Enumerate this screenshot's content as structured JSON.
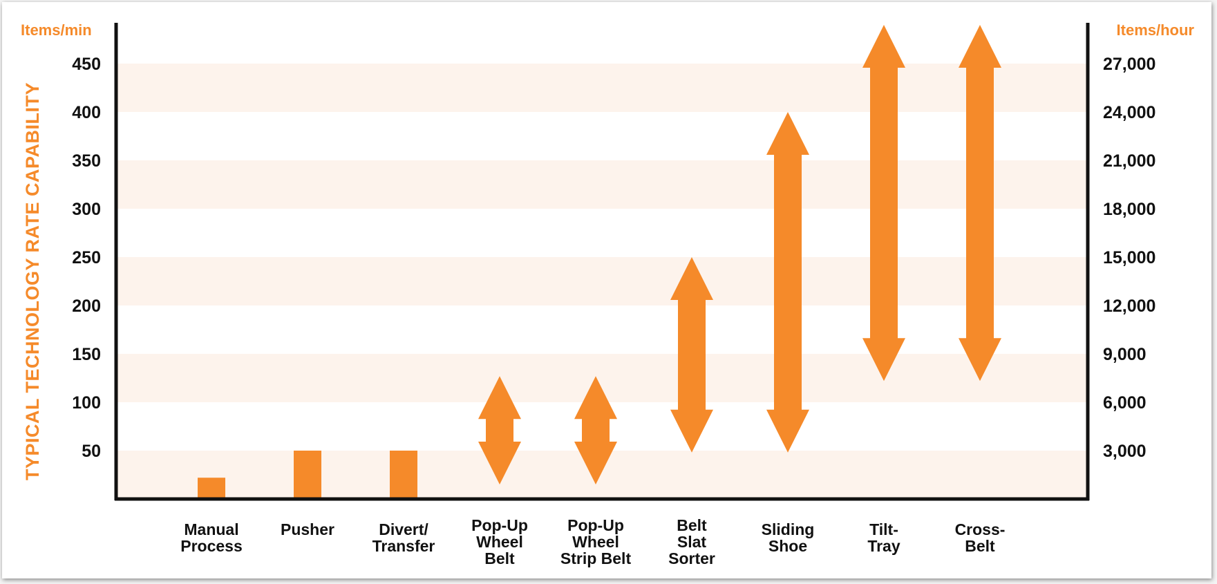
{
  "chart_data": {
    "type": "range-bar",
    "ylabel": "TYPICAL TECHNOLOGY RATE CAPABILITY",
    "left_axis_unit": "Items/min",
    "right_axis_unit": "Items/hour",
    "left_ticks": [
      "50",
      "100",
      "150",
      "200",
      "250",
      "300",
      "350",
      "400",
      "450"
    ],
    "right_ticks": [
      "3,000",
      "6,000",
      "9,000",
      "12,000",
      "15,000",
      "18,000",
      "21,000",
      "24,000",
      "27,000"
    ],
    "ylim": [
      0,
      450
    ],
    "grid": "alternating horizontal bands",
    "categories": [
      {
        "label": [
          "Manual",
          "Process"
        ],
        "kind": "bar",
        "max": 22
      },
      {
        "label": [
          "Pusher"
        ],
        "kind": "bar",
        "max": 50
      },
      {
        "label": [
          "Divert/",
          "Transfer"
        ],
        "kind": "bar",
        "max": 50
      },
      {
        "label": [
          "Pop-Up",
          "Wheel",
          "Belt"
        ],
        "kind": "range",
        "min": 15,
        "max": 127
      },
      {
        "label": [
          "Pop-Up",
          "Wheel",
          "Strip Belt"
        ],
        "kind": "range",
        "min": 15,
        "max": 127
      },
      {
        "label": [
          "Belt",
          "Slat",
          "Sorter"
        ],
        "kind": "range",
        "min": 48,
        "max": 250
      },
      {
        "label": [
          "Sliding",
          "Shoe"
        ],
        "kind": "range",
        "min": 48,
        "max": 400
      },
      {
        "label": [
          "Tilt-",
          "Tray"
        ],
        "kind": "range",
        "min": 122,
        "max": 490
      },
      {
        "label": [
          "Cross-",
          "Belt"
        ],
        "kind": "range",
        "min": 122,
        "max": 490
      }
    ],
    "colors": {
      "accent": "#f58a2a",
      "bar": "#f58a2a",
      "band": "#fdf3ec",
      "axis": "#111111"
    }
  }
}
